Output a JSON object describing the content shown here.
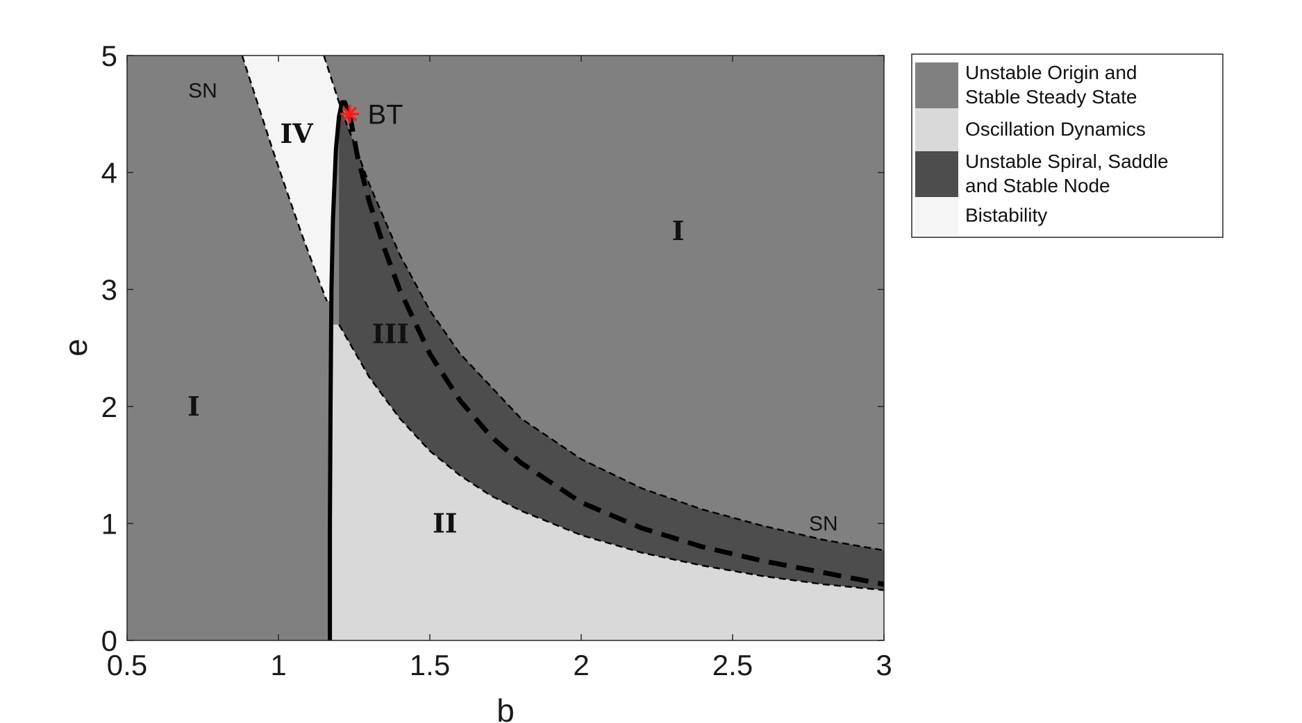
{
  "chart_data": {
    "type": "area",
    "title": "",
    "xlabel": "b",
    "ylabel": "e",
    "xlim": [
      0.5,
      3
    ],
    "ylim": [
      0,
      5
    ],
    "xticks": [
      "0.5",
      "1",
      "1.5",
      "2",
      "2.5",
      "3"
    ],
    "yticks": [
      "0",
      "1",
      "2",
      "3",
      "4",
      "5"
    ],
    "grid": false,
    "legend_position": "outside-right",
    "legend": [
      {
        "label": "Unstable Origin and\nStable Steady State",
        "color": "#808080"
      },
      {
        "label": "Oscillation Dynamics",
        "color": "#d9d9d9"
      },
      {
        "label": "Unstable Spiral, Saddle\nand Stable Node",
        "color": "#4d4d4d"
      },
      {
        "label": "Bistability",
        "color": "#f5f5f5"
      }
    ],
    "colors": {
      "region_I": "#808080",
      "region_II": "#d9d9d9",
      "region_III": "#4d4d4d",
      "region_IV": "#f5f5f5",
      "bt_marker": "#ff1a1a"
    },
    "curves": {
      "sn_left": {
        "style": "dashed",
        "x": [
          0.88,
          0.93,
          0.98,
          1.03,
          1.08,
          1.13,
          1.16
        ],
        "y": [
          5.0,
          4.6,
          4.2,
          3.82,
          3.45,
          3.1,
          2.9
        ]
      },
      "sn_upper": {
        "style": "dashed",
        "x": [
          1.15,
          1.2,
          1.22,
          1.25,
          1.3,
          1.4,
          1.5,
          1.6,
          1.8,
          2.0,
          2.2,
          2.4,
          2.6,
          2.8,
          3.0
        ],
        "y": [
          5.0,
          4.6,
          4.45,
          4.25,
          3.9,
          3.3,
          2.82,
          2.45,
          1.9,
          1.55,
          1.3,
          1.12,
          0.98,
          0.86,
          0.77
        ]
      },
      "sn_lower": {
        "style": "dashed",
        "x": [
          1.2,
          1.3,
          1.4,
          1.5,
          1.6,
          1.7,
          1.8,
          2.0,
          2.2,
          2.4,
          2.6,
          2.8,
          3.0
        ],
        "y": [
          2.7,
          2.25,
          1.9,
          1.62,
          1.41,
          1.24,
          1.11,
          0.9,
          0.75,
          0.64,
          0.55,
          0.48,
          0.43
        ]
      },
      "hopf": {
        "style": "solid-thick",
        "x": [
          1.17,
          1.17,
          1.172,
          1.175,
          1.18,
          1.19,
          1.2,
          1.21,
          1.22,
          1.235
        ],
        "y": [
          0.0,
          1.0,
          2.0,
          3.0,
          3.6,
          4.2,
          4.48,
          4.6,
          4.6,
          4.48
        ]
      },
      "homoclinic": {
        "style": "dashed-thick",
        "x": [
          1.235,
          1.26,
          1.3,
          1.35,
          1.4,
          1.5,
          1.6,
          1.7,
          1.8,
          2.0,
          2.2,
          2.4,
          2.6,
          2.8,
          3.0
        ],
        "y": [
          4.5,
          4.15,
          3.75,
          3.35,
          3.0,
          2.45,
          2.05,
          1.75,
          1.52,
          1.18,
          0.96,
          0.8,
          0.68,
          0.58,
          0.48
        ]
      }
    },
    "points": [
      {
        "label": "BT",
        "x": 1.235,
        "y": 4.5
      }
    ],
    "region_labels": [
      {
        "text": "I",
        "x": 0.72,
        "y": 2.0
      },
      {
        "text": "I",
        "x": 2.32,
        "y": 3.5
      },
      {
        "text": "II",
        "x": 1.55,
        "y": 1.0
      },
      {
        "text": "III",
        "x": 1.37,
        "y": 2.62
      },
      {
        "text": "IV",
        "x": 1.06,
        "y": 4.33
      }
    ],
    "curve_labels": [
      {
        "text": "SN",
        "x": 0.75,
        "y": 4.7
      },
      {
        "text": "SN",
        "x": 2.8,
        "y": 1.0
      }
    ]
  }
}
